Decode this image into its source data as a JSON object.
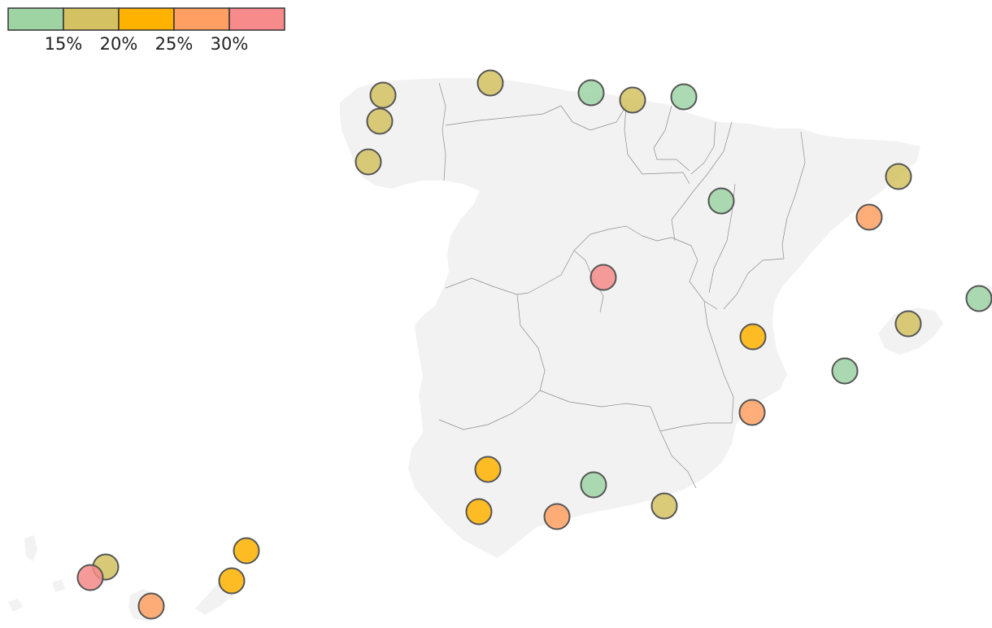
{
  "legend": {
    "tick_labels": [
      "15%",
      "20%",
      "25%",
      "30%"
    ],
    "bins": [
      {
        "color": "#9ed4a4"
      },
      {
        "color": "#d4c262"
      },
      {
        "color": "#ffb300"
      },
      {
        "color": "#ffa062"
      },
      {
        "color": "#f78a8a"
      }
    ]
  },
  "markers": [
    {
      "bin": 1
    },
    {
      "bin": 1
    },
    {
      "bin": 1
    },
    {
      "bin": 1
    },
    {
      "bin": 0
    },
    {
      "bin": 1
    },
    {
      "bin": 0
    },
    {
      "bin": 1
    },
    {
      "bin": 0
    },
    {
      "bin": 3
    },
    {
      "bin": 4
    },
    {
      "bin": 0
    },
    {
      "bin": 2
    },
    {
      "bin": 1
    },
    {
      "bin": 0
    },
    {
      "bin": 3
    },
    {
      "bin": 2
    },
    {
      "bin": 0
    },
    {
      "bin": 2
    },
    {
      "bin": 3
    },
    {
      "bin": 1
    },
    {
      "bin": 1
    },
    {
      "bin": 4
    },
    {
      "bin": 3
    },
    {
      "bin": 2
    },
    {
      "bin": 2
    }
  ]
}
